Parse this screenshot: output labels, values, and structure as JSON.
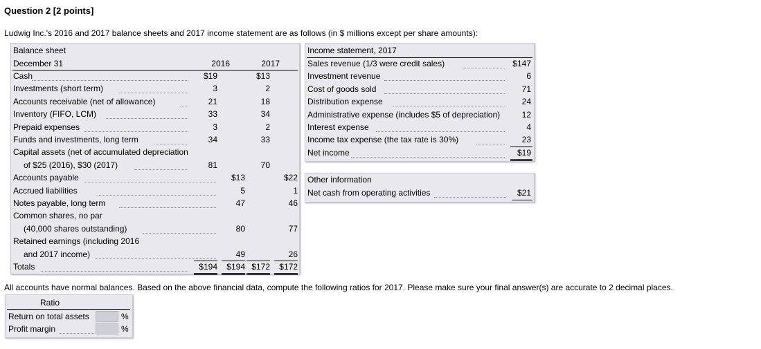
{
  "question": {
    "title": "Question 2 [2 points]",
    "intro": "Ludwig Inc.'s 2016 and 2017 balance sheets and 2017 income statement are as follows (in $ millions except per share amounts):",
    "outro": "All accounts have normal balances. Based on the above financial data, compute the following ratios for 2017. Please make sure your final answer(s) are accurate to 2 decimal places."
  },
  "balance_sheet": {
    "header": "Balance sheet",
    "subheader": "December 31",
    "col_2016": "2016",
    "col_2017": "2017",
    "rows": [
      {
        "label": "Cash",
        "a": "$19",
        "b": "$13"
      },
      {
        "label": "Investments (short term)",
        "a": "3",
        "b": "2"
      },
      {
        "label": "Accounts receivable (net of allowance)",
        "a": "21",
        "b": "18"
      },
      {
        "label": "Inventory (FIFO, LCM)",
        "a": "33",
        "b": "34"
      },
      {
        "label": "Prepaid expenses",
        "a": "3",
        "b": "2"
      },
      {
        "label": "Funds and investments, long term",
        "a": "34",
        "b": "33"
      },
      {
        "label": "Capital assets (net of accumulated depreciation"
      },
      {
        "label": "of $25 (2016), $30 (2017)",
        "a": "81",
        "b": "70"
      },
      {
        "label": "Accounts payable",
        "c": "$13",
        "d": "$22"
      },
      {
        "label": "Accrued liabilities",
        "c": "5",
        "d": "1"
      },
      {
        "label": "Notes payable, long term",
        "c": "47",
        "d": "46"
      },
      {
        "label": "Common shares, no par"
      },
      {
        "label": "(40,000 shares outstanding)",
        "c": "80",
        "d": "77"
      },
      {
        "label": "Retained earnings (including 2016"
      },
      {
        "label": "and 2017 income)",
        "c": "49",
        "d": "26"
      },
      {
        "label": "Totals",
        "a": "$194",
        "c": "$194",
        "b": "$172",
        "d": "$172"
      }
    ]
  },
  "income_statement": {
    "header": "Income statement, 2017",
    "rows": [
      {
        "label": "Sales revenue (1/3 were credit sales)",
        "v": "$147"
      },
      {
        "label": "Investment revenue",
        "v": "6"
      },
      {
        "label": "Cost of goods sold",
        "v": "71"
      },
      {
        "label": "Distribution expense",
        "v": "24"
      },
      {
        "label": "Administrative expense (includes $5 of depreciation)",
        "v": "12"
      },
      {
        "label": "Interest expense",
        "v": "4"
      },
      {
        "label": "Income tax expense (the tax rate is 30%)",
        "v": "23"
      },
      {
        "label": "Net income",
        "v": "$19"
      }
    ]
  },
  "other_info": {
    "header": "Other information",
    "label": "Net cash from operating activities",
    "value": "$21"
  },
  "ratios": {
    "header": "Ratio",
    "rows": [
      {
        "label": "Return on total assets",
        "unit": "%",
        "value": ""
      },
      {
        "label": "Profit margin",
        "unit": "%",
        "value": ""
      }
    ]
  }
}
